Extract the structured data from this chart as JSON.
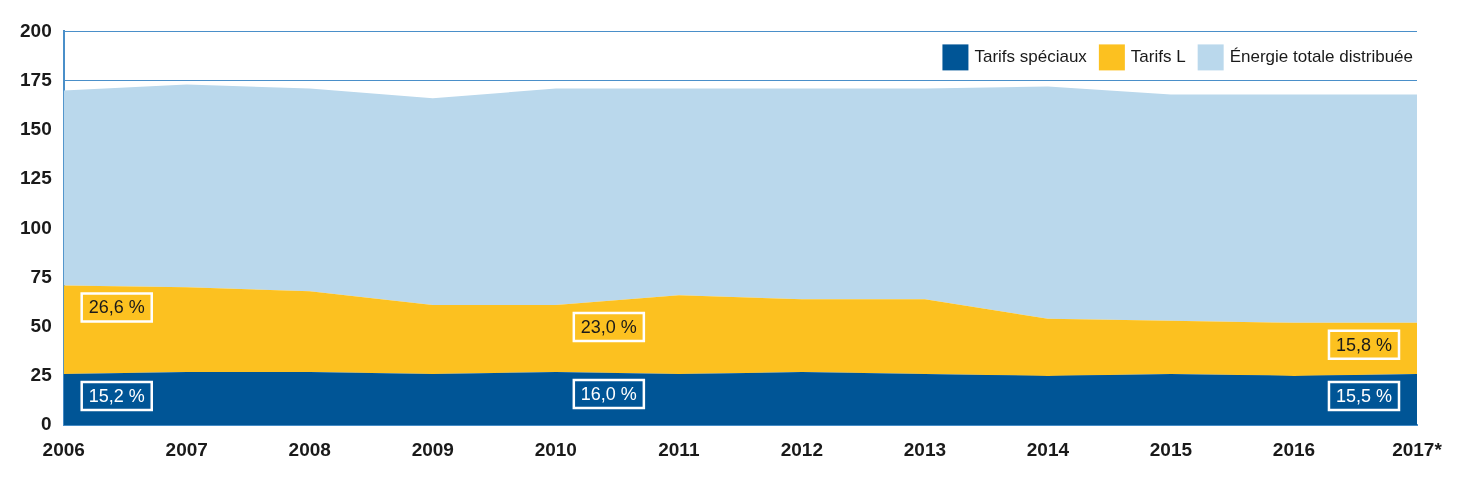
{
  "chart_data": {
    "type": "area",
    "stacked": true,
    "categories": [
      "2006",
      "2007",
      "2008",
      "2009",
      "2010",
      "2011",
      "2012",
      "2013",
      "2014",
      "2015",
      "2016",
      "2017*"
    ],
    "series": [
      {
        "name": "Tarifs spéciaux",
        "color": "#005596",
        "values": [
          26,
          27,
          27,
          26,
          27,
          26,
          27,
          26,
          25,
          26,
          25,
          26
        ]
      },
      {
        "name": "Tarifs L",
        "color": "#fcc120",
        "values": [
          45,
          43,
          41,
          35,
          34,
          40,
          37,
          38,
          29,
          27,
          27,
          26
        ]
      },
      {
        "name": "Énergie totale distribuée",
        "color": "#bad8ec",
        "values": [
          99,
          103,
          103,
          105,
          110,
          105,
          107,
          107,
          118,
          115,
          116,
          116
        ]
      }
    ],
    "ylim": [
      0,
      200
    ],
    "yticks": [
      0,
      25,
      50,
      75,
      100,
      125,
      150,
      175,
      200
    ],
    "grid": "y",
    "legend": "top right",
    "annotations": [
      {
        "text": "26,6 %",
        "x": "2006",
        "y": 71
      },
      {
        "text": "15,2 %",
        "x": "2006",
        "y": 26
      },
      {
        "text": "23,0 %",
        "x": "2010",
        "y": 61
      },
      {
        "text": "16,0 %",
        "x": "2010",
        "y": 27
      },
      {
        "text": "15,8 %",
        "x": "2017*",
        "y": 52
      },
      {
        "text": "15,5 %",
        "x": "2017*",
        "y": 26
      }
    ]
  }
}
